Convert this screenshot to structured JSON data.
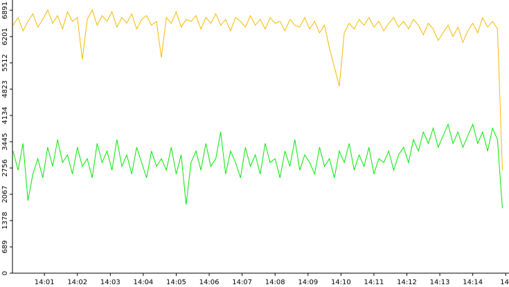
{
  "chart_data": {
    "type": "line",
    "x": [
      0.05,
      0.2,
      0.35,
      0.5,
      0.65,
      0.8,
      0.95,
      1.1,
      1.25,
      1.4,
      1.55,
      1.7,
      1.85,
      2,
      2.15,
      2.3,
      2.45,
      2.6,
      2.75,
      2.9,
      3.05,
      3.2,
      3.35,
      3.5,
      3.65,
      3.8,
      3.95,
      4.1,
      4.25,
      4.4,
      4.55,
      4.7,
      4.85,
      5,
      5.15,
      5.3,
      5.45,
      5.6,
      5.75,
      5.9,
      6.05,
      6.2,
      6.35,
      6.5,
      6.65,
      6.8,
      6.95,
      7.1,
      7.25,
      7.4,
      7.55,
      7.7,
      7.85,
      8,
      8.15,
      8.3,
      8.45,
      8.6,
      8.75,
      8.9,
      9.05,
      9.2,
      9.35,
      9.5,
      9.65,
      9.8,
      9.95,
      10.1,
      10.25,
      10.4,
      10.55,
      10.7,
      10.85,
      11,
      11.15,
      11.3,
      11.45,
      11.6,
      11.75,
      11.9,
      12.05,
      12.2,
      12.35,
      12.5,
      12.65,
      12.8,
      12.95,
      13.1,
      13.25,
      13.4,
      13.55,
      13.7,
      13.85,
      14,
      14.15,
      14.3,
      14.45,
      14.6,
      14.75,
      14.9
    ],
    "series": [
      {
        "color": "#f5b800",
        "values": [
          6500,
          6700,
          6350,
          6600,
          6800,
          6450,
          6650,
          6900,
          6550,
          6750,
          6400,
          6850,
          6600,
          6700,
          5600,
          6650,
          6900,
          6500,
          6750,
          6600,
          6850,
          6450,
          6700,
          6550,
          6800,
          6400,
          6650,
          6750,
          6500,
          6600,
          5650,
          6700,
          6550,
          6850,
          6450,
          6650,
          6600,
          6750,
          6400,
          6700,
          6550,
          6800,
          6500,
          6650,
          6350,
          6700,
          6600,
          6450,
          6750,
          6500,
          6650,
          6400,
          6700,
          6550,
          6600,
          6350,
          6650,
          6500,
          6450,
          6700,
          6400,
          6600,
          6300,
          6500,
          5900,
          5400,
          4900,
          6300,
          6550,
          6400,
          6650,
          6500,
          6700,
          6450,
          6600,
          6350,
          6550,
          6700,
          6450,
          6600,
          6400,
          6650,
          6500,
          6250,
          6550,
          6400,
          6100,
          6300,
          6500,
          6200,
          6450,
          6050,
          6350,
          6550,
          6300,
          6700,
          6450,
          6600,
          6400,
          2700
        ]
      },
      {
        "color": "#00e600",
        "values": [
          3200,
          2700,
          3400,
          1900,
          2600,
          3000,
          2500,
          3300,
          2800,
          3500,
          2900,
          3100,
          2600,
          3300,
          2800,
          3000,
          2500,
          3400,
          2900,
          3200,
          2700,
          3500,
          2800,
          3100,
          2600,
          3300,
          2900,
          2500,
          3200,
          2800,
          3000,
          2700,
          3300,
          2600,
          3100,
          1800,
          2900,
          3200,
          2700,
          3400,
          2800,
          3000,
          3700,
          2600,
          3200,
          2900,
          2500,
          3300,
          2800,
          3100,
          2600,
          3400,
          2900,
          3000,
          2500,
          3200,
          2800,
          3500,
          2700,
          3100,
          2900,
          2600,
          3300,
          2800,
          3000,
          2500,
          3200,
          2900,
          3400,
          2700,
          3100,
          2800,
          3300,
          2600,
          3000,
          2900,
          3200,
          2700,
          3100,
          3300,
          2900,
          3500,
          3200,
          3700,
          3400,
          3800,
          3300,
          3600,
          3900,
          3400,
          3700,
          3300,
          3600,
          3900,
          3400,
          3700,
          3200,
          3800,
          3500,
          1700
        ]
      }
    ],
    "xlim": [
      0.03,
      15.1
    ],
    "xticks": [
      {
        "value": 1,
        "label": "14:01"
      },
      {
        "value": 2,
        "label": "14:02"
      },
      {
        "value": 3,
        "label": "14:03"
      },
      {
        "value": 4,
        "label": "14:04"
      },
      {
        "value": 5,
        "label": "14:05"
      },
      {
        "value": 6,
        "label": "14:06"
      },
      {
        "value": 7,
        "label": "14:07"
      },
      {
        "value": 8,
        "label": "14:08"
      },
      {
        "value": 9,
        "label": "14:09"
      },
      {
        "value": 10,
        "label": "14:10"
      },
      {
        "value": 11,
        "label": "14:11"
      },
      {
        "value": 12,
        "label": "14:12"
      },
      {
        "value": 13,
        "label": "14:13"
      },
      {
        "value": 14,
        "label": "14:14"
      },
      {
        "value": 15,
        "label": "14"
      }
    ],
    "ylim": [
      0,
      7160
    ],
    "yticks": [
      0,
      689,
      1378,
      2067,
      2756,
      3445,
      4134,
      4823,
      5512,
      6201,
      6891
    ]
  }
}
